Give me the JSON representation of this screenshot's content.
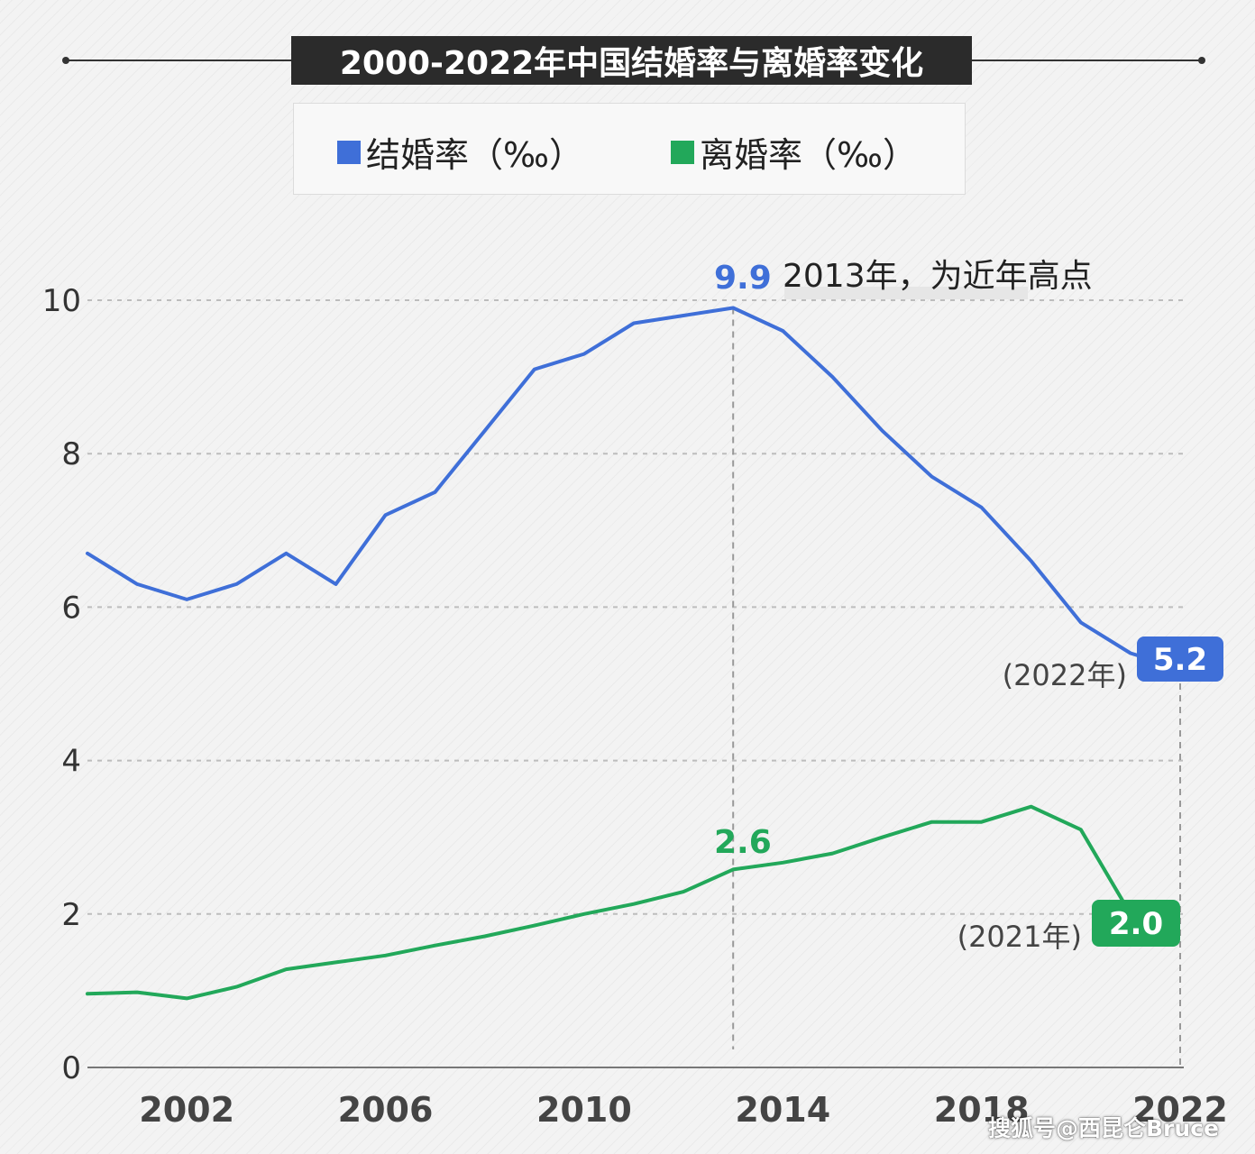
{
  "title": "2000-2022年中国结婚率与离婚率变化",
  "legend": [
    {
      "label": "结婚率（‰）",
      "color": "#3f6fd8"
    },
    {
      "label": "离婚率（‰）",
      "color": "#22a85a"
    }
  ],
  "annotations": {
    "peak_value": "9.9",
    "peak_note": "2013年，为近年高点",
    "divorce_mid_value": "2.6",
    "marriage_end_year": "(2022年)",
    "marriage_end_value": "5.2",
    "divorce_end_year": "(2021年)",
    "divorce_end_value": "2.0"
  },
  "watermark": "搜狐号@西昆仑Bruce",
  "chart_data": {
    "type": "line",
    "title": "2000-2022年中国结婚率与离婚率变化",
    "x": [
      2000,
      2001,
      2002,
      2003,
      2004,
      2005,
      2006,
      2007,
      2008,
      2009,
      2010,
      2011,
      2012,
      2013,
      2014,
      2015,
      2016,
      2017,
      2018,
      2019,
      2020,
      2021,
      2022
    ],
    "x_ticks": [
      "2002",
      "2006",
      "2010",
      "2014",
      "2018",
      "2022"
    ],
    "y_ticks": [
      "0",
      "2",
      "4",
      "6",
      "8",
      "10"
    ],
    "ylim": [
      0,
      10
    ],
    "grid": "horizontal dashed",
    "legend_position": "top-center",
    "series": [
      {
        "name": "结婚率（‰）",
        "color": "#3f6fd8",
        "values": [
          6.7,
          6.3,
          6.1,
          6.3,
          6.7,
          6.3,
          7.2,
          7.5,
          8.3,
          9.1,
          9.3,
          9.7,
          9.8,
          9.9,
          9.6,
          9.0,
          8.3,
          7.7,
          7.3,
          6.6,
          5.8,
          5.4,
          5.2
        ]
      },
      {
        "name": "离婚率（‰）",
        "color": "#22a85a",
        "values": [
          0.96,
          0.98,
          0.9,
          1.05,
          1.28,
          1.37,
          1.46,
          1.59,
          1.71,
          1.85,
          2.0,
          2.13,
          2.29,
          2.58,
          2.67,
          2.79,
          3.0,
          3.2,
          3.2,
          3.4,
          3.1,
          2.0,
          null
        ]
      }
    ]
  }
}
